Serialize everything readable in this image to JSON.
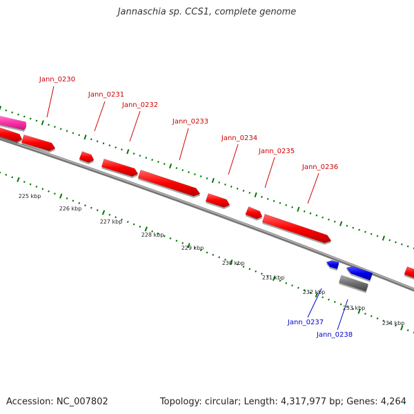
{
  "title": "Jannaschia sp. CCS1, complete genome",
  "footer": {
    "accession": "Accession: NC_007802",
    "summary": "Topology: circular; Length: 4,317,977 bp; Genes: 4,264"
  },
  "colors": {
    "forward_gene": "#ff0000",
    "forward_highlight": "#ff33aa",
    "reverse_gene": "#0000ee",
    "reverse_gray": "#707070",
    "backbone": "#888888",
    "tick": "#007700",
    "forward_label": "#cc0000",
    "reverse_label": "#0000cc"
  },
  "forward_genes": [
    "Jann_0230",
    "Jann_0231",
    "Jann_0232",
    "Jann_0233",
    "Jann_0234",
    "Jann_0235",
    "Jann_0236"
  ],
  "reverse_genes": [
    "Jann_0237",
    "Jann_0238"
  ],
  "kbp_ticks": [
    "225 kbp",
    "226 kbp",
    "227 kbp",
    "228 kbp",
    "229 kbp",
    "230 kbp",
    "231 kbp",
    "232 kbp",
    "233 kbp",
    "234 kbp"
  ]
}
